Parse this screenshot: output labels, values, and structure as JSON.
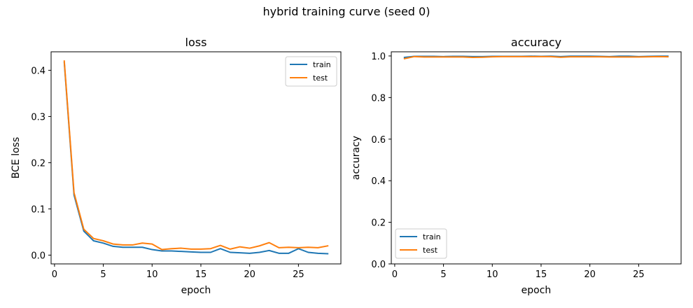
{
  "figure": {
    "title": "hybrid training curve (seed 0)"
  },
  "colors": {
    "train": "#1f77b4",
    "test": "#ff7f0e"
  },
  "chart_data": [
    {
      "type": "line",
      "title": "loss",
      "xlabel": "epoch",
      "ylabel": "BCE loss",
      "xlim": [
        -0.35,
        29.35
      ],
      "ylim": [
        -0.019,
        0.44
      ],
      "xticks": [
        0,
        5,
        10,
        15,
        20,
        25
      ],
      "yticks": [
        0.0,
        0.1,
        0.2,
        0.3,
        0.4
      ],
      "ytick_labels": [
        "0.0",
        "0.1",
        "0.2",
        "0.3",
        "0.4"
      ],
      "grid": false,
      "legend": "upper right",
      "x": [
        1,
        2,
        3,
        4,
        5,
        6,
        7,
        8,
        9,
        10,
        11,
        12,
        13,
        14,
        15,
        16,
        17,
        18,
        19,
        20,
        21,
        22,
        23,
        24,
        25,
        26,
        27,
        28
      ],
      "series": [
        {
          "name": "train",
          "values": [
            0.417,
            0.13,
            0.052,
            0.031,
            0.026,
            0.019,
            0.017,
            0.017,
            0.017,
            0.012,
            0.009,
            0.009,
            0.008,
            0.007,
            0.006,
            0.006,
            0.014,
            0.006,
            0.005,
            0.004,
            0.006,
            0.01,
            0.004,
            0.004,
            0.014,
            0.006,
            0.004,
            0.003
          ]
        },
        {
          "name": "test",
          "values": [
            0.42,
            0.135,
            0.056,
            0.036,
            0.031,
            0.024,
            0.022,
            0.022,
            0.026,
            0.024,
            0.012,
            0.014,
            0.015,
            0.013,
            0.013,
            0.014,
            0.021,
            0.013,
            0.018,
            0.015,
            0.02,
            0.027,
            0.016,
            0.017,
            0.016,
            0.017,
            0.016,
            0.02
          ]
        }
      ]
    },
    {
      "type": "line",
      "title": "accuracy",
      "xlabel": "epoch",
      "ylabel": "accuracy",
      "xlim": [
        -0.35,
        29.35
      ],
      "ylim": [
        0.0,
        1.02
      ],
      "xticks": [
        0,
        5,
        10,
        15,
        20,
        25
      ],
      "yticks": [
        0.0,
        0.2,
        0.4,
        0.6,
        0.8,
        1.0
      ],
      "ytick_labels": [
        "0.0",
        "0.2",
        "0.4",
        "0.6",
        "0.8",
        "1.0"
      ],
      "grid": false,
      "legend": "lower left",
      "x": [
        1,
        2,
        3,
        4,
        5,
        6,
        7,
        8,
        9,
        10,
        11,
        12,
        13,
        14,
        15,
        16,
        17,
        18,
        19,
        20,
        21,
        22,
        23,
        24,
        25,
        26,
        27,
        28
      ],
      "series": [
        {
          "name": "train",
          "values": [
            0.993,
            0.998,
            0.998,
            0.998,
            0.997,
            0.998,
            0.998,
            0.997,
            0.997,
            0.998,
            0.998,
            0.998,
            0.998,
            0.999,
            0.998,
            0.999,
            0.997,
            0.999,
            0.999,
            0.999,
            0.998,
            0.997,
            0.999,
            0.999,
            0.997,
            0.998,
            0.999,
            0.999
          ]
        },
        {
          "name": "test",
          "values": [
            0.987,
            0.997,
            0.995,
            0.995,
            0.995,
            0.995,
            0.995,
            0.993,
            0.994,
            0.996,
            0.997,
            0.997,
            0.997,
            0.997,
            0.997,
            0.997,
            0.994,
            0.996,
            0.996,
            0.996,
            0.996,
            0.995,
            0.995,
            0.995,
            0.995,
            0.996,
            0.997,
            0.996
          ]
        }
      ]
    }
  ]
}
